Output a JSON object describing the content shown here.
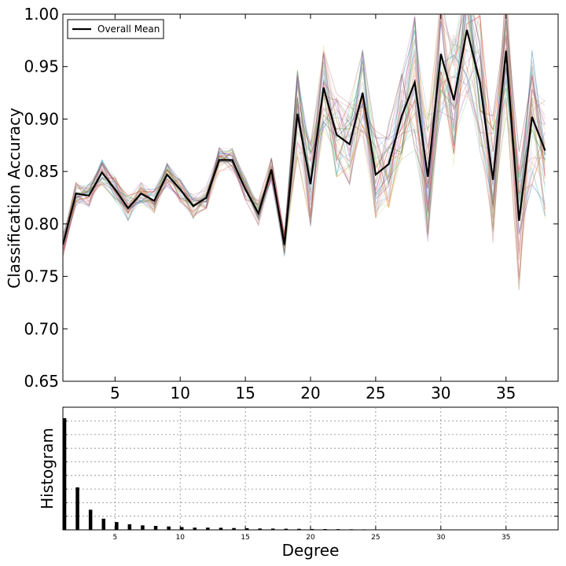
{
  "chart_data": [
    {
      "type": "line",
      "panel": "top",
      "title": "",
      "xlabel": "",
      "ylabel": "Classification Accuracy",
      "xlim": [
        1,
        39
      ],
      "ylim": [
        0.65,
        1.0
      ],
      "xticks": [
        5,
        10,
        15,
        20,
        25,
        30,
        35
      ],
      "xtick_labels": [
        "5",
        "10",
        "15",
        "20",
        "25",
        "30",
        "35"
      ],
      "yticks": [
        0.65,
        0.7,
        0.75,
        0.8,
        0.85,
        0.9,
        0.95,
        1.0
      ],
      "ytick_labels": [
        "0.65",
        "0.70",
        "0.75",
        "0.80",
        "0.85",
        "0.90",
        "0.95",
        "1.00"
      ],
      "grid": false,
      "legend": {
        "position": "top-left",
        "entries": [
          "Overall Mean"
        ]
      },
      "series": [
        {
          "name": "Overall Mean",
          "color": "#000000",
          "x": [
            1,
            2,
            3,
            4,
            5,
            6,
            7,
            8,
            9,
            10,
            11,
            12,
            13,
            14,
            15,
            16,
            17,
            18,
            19,
            20,
            21,
            22,
            23,
            24,
            25,
            26,
            27,
            28,
            29,
            30,
            31,
            32,
            33,
            34,
            35,
            36,
            37,
            38
          ],
          "values": [
            0.78,
            0.829,
            0.827,
            0.849,
            0.833,
            0.815,
            0.829,
            0.822,
            0.847,
            0.833,
            0.817,
            0.825,
            0.861,
            0.861,
            0.833,
            0.81,
            0.852,
            0.78,
            0.905,
            0.838,
            0.93,
            0.885,
            0.876,
            0.925,
            0.847,
            0.857,
            0.903,
            0.935,
            0.845,
            0.962,
            0.918,
            0.985,
            0.935,
            0.842,
            0.965,
            0.803,
            0.902,
            0.87
          ]
        }
      ],
      "background_series": {
        "description_count": 40,
        "colors": [
          "#1f77b4",
          "#ff7f0e",
          "#2ca02c",
          "#d62728",
          "#9467bd",
          "#8c564b",
          "#e377c2",
          "#7f7f7f",
          "#bcbd22",
          "#17becf",
          "#4b0082",
          "#800000"
        ]
      }
    },
    {
      "type": "bar",
      "panel": "bottom",
      "title": "",
      "xlabel": "Degree",
      "ylabel": "Histogram",
      "xlim": [
        1,
        39
      ],
      "ylim": [
        0,
        1
      ],
      "xticks": [
        5,
        10,
        15,
        20,
        25,
        30,
        35
      ],
      "xtick_labels": [
        "5",
        "10",
        "15",
        "20",
        "25",
        "30",
        "35"
      ],
      "grid": true,
      "color": "#000000",
      "categories": [
        1,
        2,
        3,
        4,
        5,
        6,
        7,
        8,
        9,
        10,
        11,
        12,
        13,
        14,
        15,
        16,
        17,
        18,
        19,
        20,
        21,
        22,
        23,
        24
      ],
      "values": [
        1.0,
        0.38,
        0.18,
        0.1,
        0.07,
        0.05,
        0.04,
        0.035,
        0.03,
        0.025,
        0.02,
        0.02,
        0.018,
        0.016,
        0.014,
        0.012,
        0.011,
        0.01,
        0.009,
        0.008,
        0.007,
        0.006,
        0.005,
        0.004
      ]
    }
  ]
}
